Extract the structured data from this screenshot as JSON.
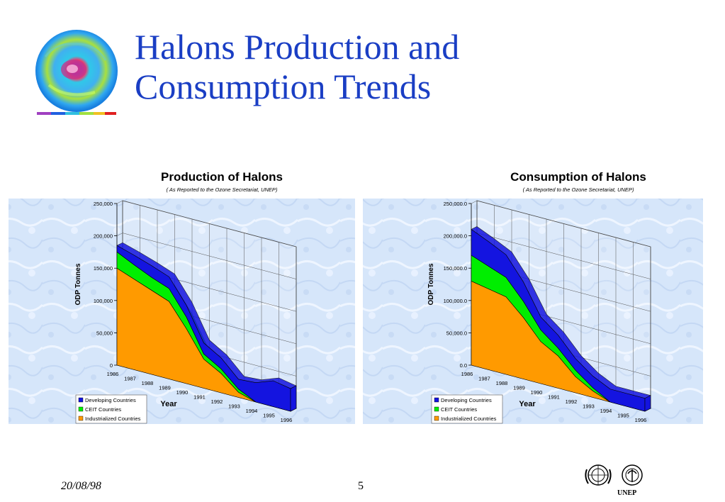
{
  "slide": {
    "title_line1": "Halons Production and",
    "title_line2": "Consumption Trends",
    "date": "20/08/98",
    "page_number": "5",
    "logo_text": "UNEP"
  },
  "colors": {
    "title": "#1a3ec4",
    "developing": "#1414e0",
    "ceit": "#00ee00",
    "industrialized": "#ff9a00",
    "plot_background": "#d6e6fa"
  },
  "chart_data": [
    {
      "type": "area",
      "stacked": true,
      "title": "Production of Halons",
      "subtitle": "( As Reported to the Ozone Secretariat, UNEP)",
      "xlabel": "Year",
      "ylabel": "ODP Tonnes",
      "ylim": [
        0,
        250000
      ],
      "y_ticks": [
        "0",
        "50,000",
        "100,000",
        "150,000",
        "200,000",
        "250,000"
      ],
      "x": [
        "1986",
        "1987",
        "1988",
        "1989",
        "1990",
        "1991",
        "1992",
        "1993",
        "1994",
        "1995",
        "1996"
      ],
      "series": [
        {
          "name": "Industrialized Countries",
          "values": [
            150000,
            140000,
            130000,
            120000,
            85000,
            45000,
            30000,
            8000,
            0,
            0,
            0
          ]
        },
        {
          "name": "CEIT Countries",
          "values": [
            25000,
            22000,
            20000,
            20000,
            18000,
            8000,
            7000,
            5000,
            0,
            0,
            0
          ]
        },
        {
          "name": "Developing Countries",
          "values": [
            10000,
            15000,
            18000,
            18000,
            18000,
            17000,
            17000,
            15000,
            30000,
            40000,
            35000
          ]
        }
      ],
      "legend": "bottom-left",
      "grid": true
    },
    {
      "type": "area",
      "stacked": true,
      "title": "Consumption of Halons",
      "subtitle": "( As Reported to the Ozone Secretariat, UNEP)",
      "xlabel": "Year",
      "ylabel": "ODP Tonnes",
      "ylim": [
        0,
        250000
      ],
      "y_ticks": [
        "0.0",
        "50,000.0",
        "100,000.0",
        "150,000.0",
        "200,000.0",
        "250,000.0"
      ],
      "x": [
        "1986",
        "1987",
        "1988",
        "1989",
        "1990",
        "1991",
        "1992",
        "1993",
        "1994",
        "1995",
        "1996"
      ],
      "series": [
        {
          "name": "Industrialized Countries",
          "values": [
            130000,
            125000,
            120000,
            95000,
            65000,
            50000,
            25000,
            10000,
            0,
            0,
            0
          ]
        },
        {
          "name": "CEIT Countries",
          "values": [
            40000,
            35000,
            30000,
            25000,
            18000,
            12000,
            10000,
            5000,
            0,
            0,
            0
          ]
        },
        {
          "name": "Developing Countries",
          "values": [
            40000,
            38000,
            35000,
            30000,
            20000,
            20000,
            18000,
            18000,
            20000,
            20000,
            20000
          ]
        }
      ],
      "legend": "bottom-left",
      "grid": true
    }
  ]
}
